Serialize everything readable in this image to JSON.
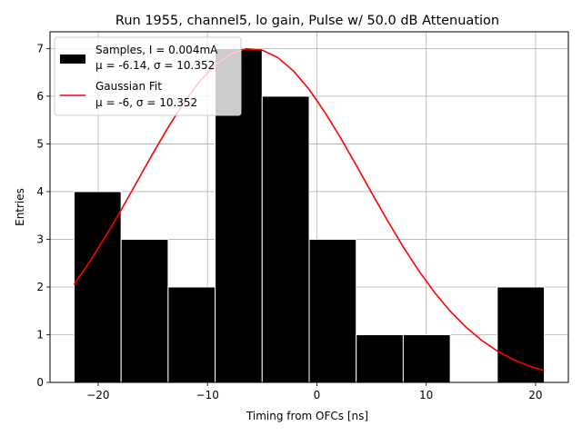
{
  "chart_data": {
    "type": "bar",
    "title": "Run 1955, channel5, lo gain, Pulse w/ 50.0 dB Attenuation",
    "xlabel": "Timing from OFCs [ns]",
    "ylabel": "Entries",
    "xlim": [
      -24.4,
      23.0
    ],
    "ylim": [
      0,
      7.35
    ],
    "x_ticks": [
      -20,
      -10,
      0,
      10,
      20
    ],
    "x_tick_labels": [
      "−20",
      "−10",
      "0",
      "10",
      "20"
    ],
    "y_ticks": [
      0,
      1,
      2,
      3,
      4,
      5,
      6,
      7
    ],
    "y_tick_labels": [
      "0",
      "1",
      "2",
      "3",
      "4",
      "5",
      "6",
      "7"
    ],
    "grid": true,
    "legend_position": "top-left",
    "histogram": {
      "bin_edges": [
        -22.2,
        -17.9,
        -13.6,
        -9.3,
        -5.0,
        -0.7,
        3.6,
        7.9,
        12.2,
        16.5,
        20.8
      ],
      "counts": [
        4,
        3,
        2,
        7,
        6,
        3,
        1,
        1,
        0,
        2
      ],
      "color": "#000000",
      "edge_color": "#ffffff",
      "legend_line1": "Samples, I = 0.004mA",
      "legend_line2": "μ = -6.14, σ = 10.352"
    },
    "fit": {
      "color": "#ff0000",
      "mu": -6.0,
      "sigma": 10.352,
      "amplitude": 7.0,
      "x_start": -22.2,
      "x_end": 20.8,
      "points": 31,
      "legend_line1": "Gaussian Fit",
      "legend_line2": "μ = -6, σ = 10.352"
    }
  }
}
